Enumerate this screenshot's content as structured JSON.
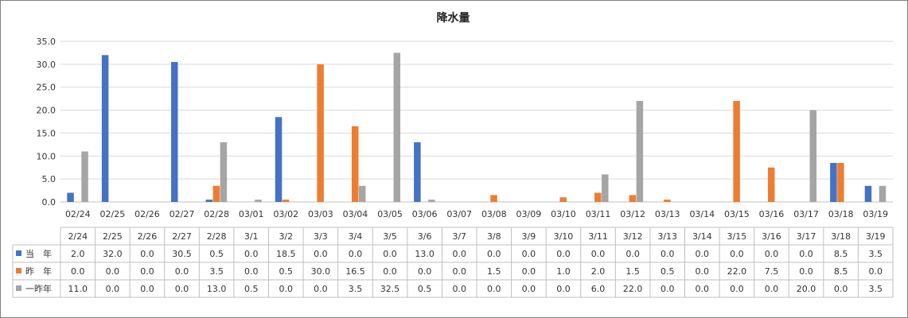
{
  "chart_data": {
    "type": "bar",
    "title": "降水量",
    "xlabel": "",
    "ylabel": "",
    "ylim": [
      0,
      35
    ],
    "yticks": [
      "0.0",
      "5.0",
      "10.0",
      "15.0",
      "20.0",
      "25.0",
      "30.0",
      "35.0"
    ],
    "grid": true,
    "categories": [
      "02/24",
      "02/25",
      "02/26",
      "02/27",
      "02/28",
      "03/01",
      "03/02",
      "03/03",
      "03/04",
      "03/05",
      "03/06",
      "03/07",
      "03/08",
      "03/09",
      "03/10",
      "03/11",
      "03/12",
      "03/13",
      "03/14",
      "03/15",
      "03/16",
      "03/17",
      "03/18",
      "03/19"
    ],
    "table_headers": [
      "2/24",
      "2/25",
      "2/26",
      "2/27",
      "2/28",
      "3/1",
      "3/2",
      "3/3",
      "3/4",
      "3/5",
      "3/6",
      "3/7",
      "3/8",
      "3/9",
      "3/10",
      "3/11",
      "3/12",
      "3/13",
      "3/14",
      "3/15",
      "3/16",
      "3/17",
      "3/18",
      "3/19"
    ],
    "series": [
      {
        "name": "当　年",
        "color": "#4472c4",
        "values": [
          2.0,
          32.0,
          0.0,
          30.5,
          0.5,
          0.0,
          18.5,
          0.0,
          0.0,
          0.0,
          13.0,
          0.0,
          0.0,
          0.0,
          0.0,
          0.0,
          0.0,
          0.0,
          0.0,
          0.0,
          0.0,
          0.0,
          8.5,
          3.5
        ]
      },
      {
        "name": "昨　年",
        "color": "#ed7d31",
        "values": [
          0.0,
          0.0,
          0.0,
          0.0,
          3.5,
          0.0,
          0.5,
          30.0,
          16.5,
          0.0,
          0.0,
          0.0,
          1.5,
          0.0,
          1.0,
          2.0,
          1.5,
          0.5,
          0.0,
          22.0,
          7.5,
          0.0,
          8.5,
          0.0
        ]
      },
      {
        "name": "一昨年",
        "color": "#a5a5a5",
        "values": [
          11.0,
          0.0,
          0.0,
          0.0,
          13.0,
          0.5,
          0.0,
          0.0,
          3.5,
          32.5,
          0.5,
          0.0,
          0.0,
          0.0,
          0.0,
          6.0,
          22.0,
          0.0,
          0.0,
          0.0,
          0.0,
          20.0,
          0.0,
          3.5
        ]
      }
    ]
  }
}
